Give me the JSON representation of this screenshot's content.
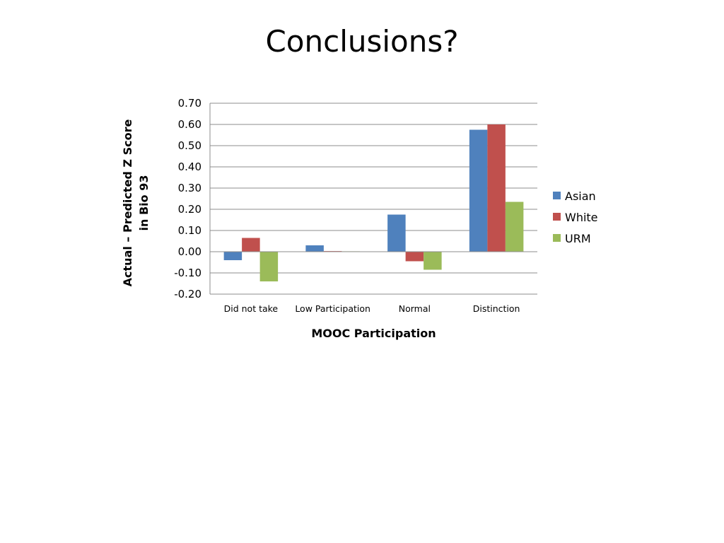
{
  "slide": {
    "title": "Conclusions?"
  },
  "chart_data": {
    "type": "bar",
    "xlabel": "MOOC Participation",
    "ylabel_lines": [
      "Actual – Predicted Z Score",
      "in Bio 93"
    ],
    "ylim": [
      -0.2,
      0.7
    ],
    "yticks": [
      -0.2,
      -0.1,
      0.0,
      0.1,
      0.2,
      0.3,
      0.4,
      0.5,
      0.6,
      0.7
    ],
    "ytick_labels": [
      "-0.20",
      "-0.10",
      "0.00",
      "0.10",
      "0.20",
      "0.30",
      "0.40",
      "0.50",
      "0.60",
      "0.70"
    ],
    "grid": true,
    "legend_position": "right",
    "categories": [
      "Did not take",
      "Low Participation",
      "Normal",
      "Distinction"
    ],
    "series": [
      {
        "name": "Asian",
        "color": "#4F81BD",
        "values": [
          -0.04,
          0.03,
          0.175,
          0.575
        ]
      },
      {
        "name": "White",
        "color": "#C0504D",
        "values": [
          0.065,
          0.003,
          -0.045,
          0.6
        ]
      },
      {
        "name": "URM",
        "color": "#9BBB59",
        "values": [
          -0.14,
          0.002,
          -0.085,
          0.235
        ]
      }
    ]
  }
}
